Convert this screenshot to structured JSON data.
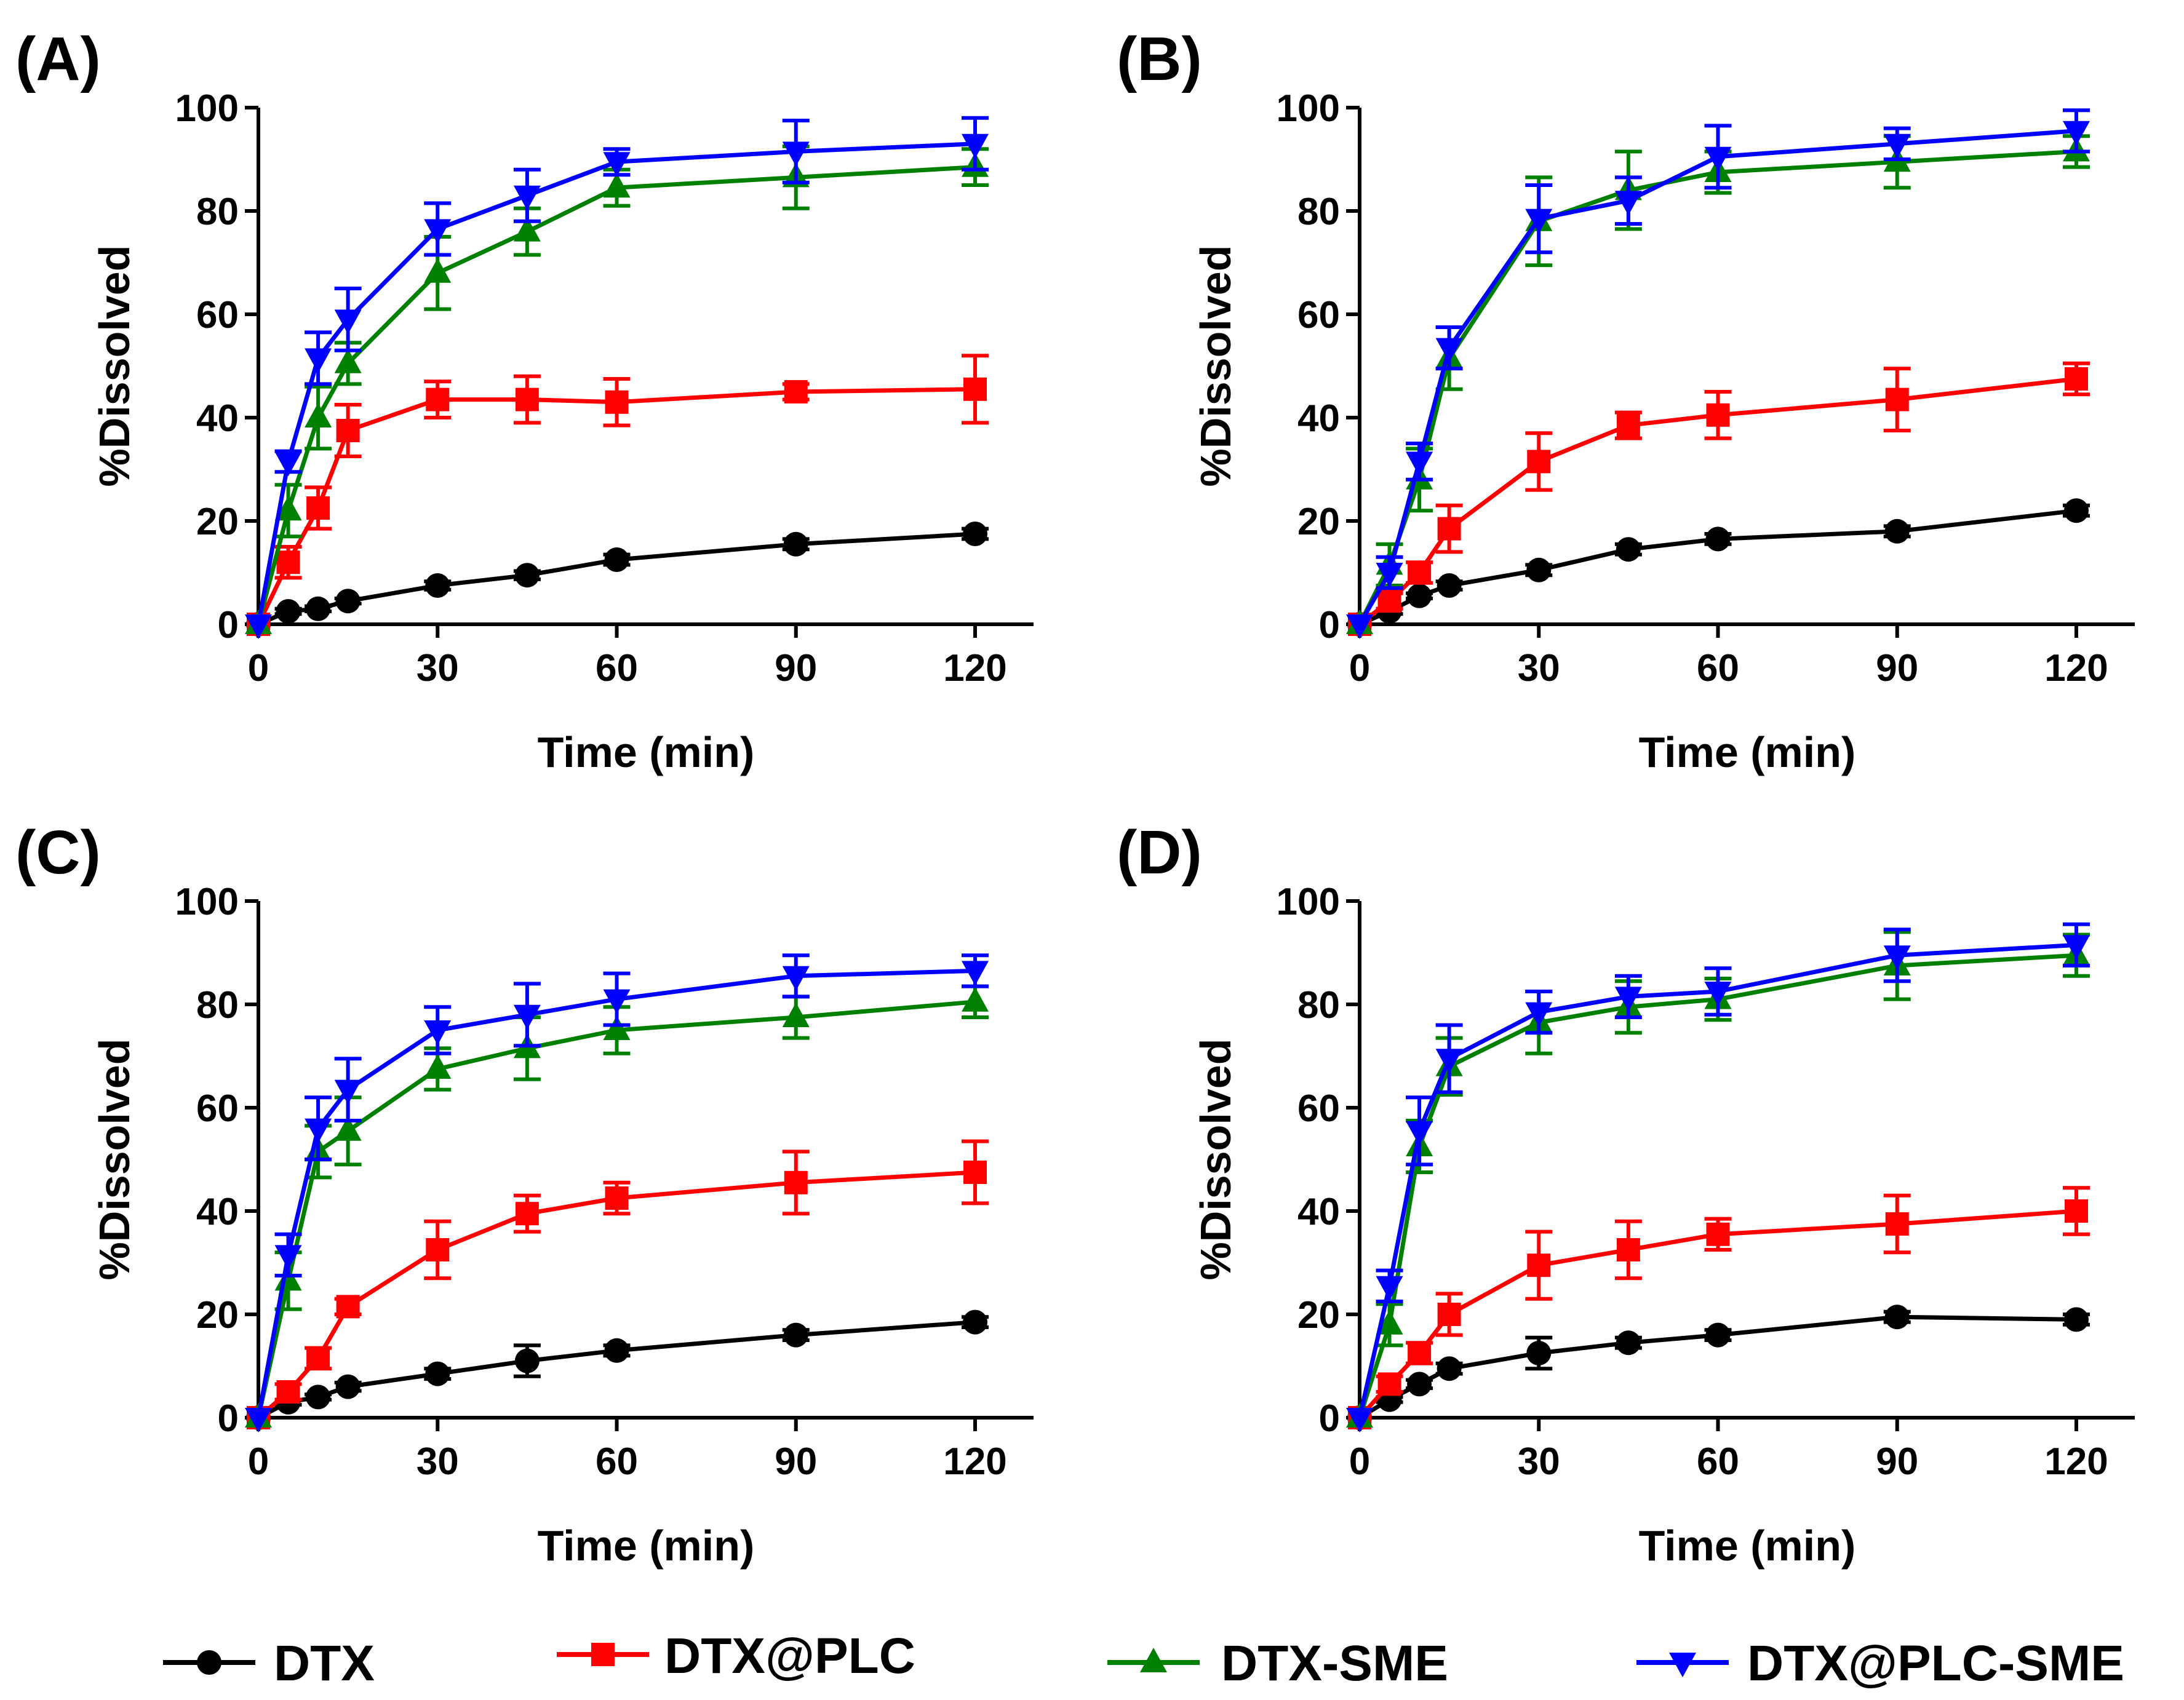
{
  "figure": {
    "x_label": "Time (min)",
    "y_label": "%Dissolved"
  },
  "series_styles": [
    {
      "name": "DTX",
      "color": "#000000",
      "marker": "circle"
    },
    {
      "name": "DTX@PLC",
      "color": "#ff0000",
      "marker": "square"
    },
    {
      "name": "DTX-SME",
      "color": "#008000",
      "marker": "triangle-up"
    },
    {
      "name": "DTX@PLC-SME",
      "color": "#0000ff",
      "marker": "triangle-down"
    }
  ],
  "legend": [
    "DTX",
    "DTX@PLC",
    "DTX-SME",
    "DTX@PLC-SME"
  ],
  "chart_data": [
    {
      "type": "line",
      "panel": "(A)",
      "xlabel": "Time (min)",
      "ylabel": "%Dissolved",
      "xlim": [
        0,
        120
      ],
      "ylim": [
        0,
        100
      ],
      "xticks": [
        0,
        30,
        60,
        90,
        120
      ],
      "yticks": [
        0,
        20,
        40,
        60,
        80,
        100
      ],
      "x": [
        0,
        5,
        10,
        15,
        30,
        45,
        60,
        90,
        120
      ],
      "series": [
        {
          "name": "DTX",
          "values": [
            0,
            2.5,
            3,
            4.5,
            7.5,
            9.5,
            12.5,
            15.5,
            17.5
          ],
          "errors": [
            0,
            0.5,
            0.5,
            0.5,
            0.8,
            0.8,
            1,
            1,
            1
          ]
        },
        {
          "name": "DTX@PLC",
          "values": [
            0,
            12,
            22.5,
            37.5,
            43.5,
            43.5,
            43,
            45,
            45.5
          ],
          "errors": [
            0,
            3,
            4,
            5,
            3.5,
            4.5,
            4.5,
            1.5,
            6.5
          ]
        },
        {
          "name": "DTX-SME",
          "values": [
            0,
            22,
            40,
            50.5,
            68,
            76,
            84.5,
            86.5,
            88.5
          ],
          "errors": [
            0,
            5,
            6,
            4,
            7,
            4.5,
            3.5,
            6,
            3.5
          ]
        },
        {
          "name": "DTX@PLC-SME",
          "values": [
            0,
            31.5,
            51.5,
            59,
            76.5,
            83,
            89.5,
            91.5,
            93
          ],
          "errors": [
            0,
            2,
            5,
            6,
            5,
            5,
            2.5,
            6,
            5
          ]
        }
      ]
    },
    {
      "type": "line",
      "panel": "(B)",
      "xlabel": "Time (min)",
      "ylabel": "%Dissolved",
      "xlim": [
        0,
        120
      ],
      "ylim": [
        0,
        100
      ],
      "xticks": [
        0,
        30,
        60,
        90,
        120
      ],
      "yticks": [
        0,
        20,
        40,
        60,
        80,
        100
      ],
      "x": [
        0,
        5,
        10,
        15,
        30,
        45,
        60,
        90,
        120
      ],
      "series": [
        {
          "name": "DTX",
          "values": [
            0,
            2.5,
            5.5,
            7.5,
            10.5,
            14.5,
            16.5,
            18,
            22
          ],
          "errors": [
            0,
            0.5,
            0.5,
            0.8,
            1,
            1,
            1,
            1,
            1
          ]
        },
        {
          "name": "DTX@PLC",
          "values": [
            0,
            4.5,
            10,
            18.5,
            31.5,
            38.5,
            40.5,
            43.5,
            47.5
          ],
          "errors": [
            0,
            1.5,
            2,
            4.5,
            5.5,
            2.5,
            4.5,
            6,
            3
          ]
        },
        {
          "name": "DTX-SME",
          "values": [
            0,
            11.5,
            28,
            51.5,
            78,
            84,
            87.5,
            89.5,
            91.5
          ],
          "errors": [
            0,
            4,
            6,
            6,
            8.5,
            7.5,
            4,
            5,
            3
          ]
        },
        {
          "name": "DTX@PLC-SME",
          "values": [
            0,
            10,
            31.5,
            53.5,
            78.5,
            82,
            90.5,
            93,
            95.5
          ],
          "errors": [
            0,
            3,
            3.5,
            4,
            6.5,
            4.5,
            6,
            3,
            4
          ]
        }
      ]
    },
    {
      "type": "line",
      "panel": "(C)",
      "xlabel": "Time (min)",
      "ylabel": "%Dissolved",
      "xlim": [
        0,
        120
      ],
      "ylim": [
        0,
        100
      ],
      "xticks": [
        0,
        30,
        60,
        90,
        120
      ],
      "yticks": [
        0,
        20,
        40,
        60,
        80,
        100
      ],
      "x": [
        0,
        5,
        10,
        15,
        30,
        45,
        60,
        90,
        120
      ],
      "series": [
        {
          "name": "DTX",
          "values": [
            0,
            3,
            4,
            6,
            8.5,
            11,
            13,
            16,
            18.5
          ],
          "errors": [
            0,
            0.5,
            0.5,
            0.8,
            1,
            3,
            1,
            1,
            1
          ]
        },
        {
          "name": "DTX@PLC",
          "values": [
            0,
            5,
            11.5,
            21.5,
            32.5,
            39.5,
            42.5,
            45.5,
            47.5
          ],
          "errors": [
            0,
            1.5,
            2,
            1.5,
            5.5,
            3.5,
            3,
            6,
            6
          ]
        },
        {
          "name": "DTX-SME",
          "values": [
            0,
            26.5,
            51.5,
            55.5,
            67.5,
            71.5,
            75,
            77.5,
            80.5
          ],
          "errors": [
            0,
            5.5,
            5,
            6.5,
            4,
            6,
            4.5,
            4,
            3
          ]
        },
        {
          "name": "DTX@PLC-SME",
          "values": [
            0,
            31.5,
            56,
            63.5,
            75,
            78,
            81,
            85.5,
            86.5
          ],
          "errors": [
            0,
            4,
            6,
            6,
            4.5,
            6,
            5,
            4,
            3
          ]
        }
      ]
    },
    {
      "type": "line",
      "panel": "(D)",
      "xlabel": "Time (min)",
      "ylabel": "%Dissolved",
      "xlim": [
        0,
        120
      ],
      "ylim": [
        0,
        100
      ],
      "xticks": [
        0,
        30,
        60,
        90,
        120
      ],
      "yticks": [
        0,
        20,
        40,
        60,
        80,
        100
      ],
      "x": [
        0,
        5,
        10,
        15,
        30,
        45,
        60,
        90,
        120
      ],
      "series": [
        {
          "name": "DTX",
          "values": [
            0,
            3.5,
            6.5,
            9.5,
            12.5,
            14.5,
            16,
            19.5,
            19
          ],
          "errors": [
            0,
            0.5,
            0.8,
            1,
            3,
            1,
            1,
            1,
            1
          ]
        },
        {
          "name": "DTX@PLC",
          "values": [
            0,
            6.5,
            12.5,
            20,
            29.5,
            32.5,
            35.5,
            37.5,
            40
          ],
          "errors": [
            0,
            1.5,
            2,
            4,
            6.5,
            5.5,
            3,
            5.5,
            4.5
          ]
        },
        {
          "name": "DTX-SME",
          "values": [
            0,
            18,
            52.5,
            68,
            76.5,
            79.5,
            81,
            87.5,
            89.5
          ],
          "errors": [
            0,
            4,
            5,
            5.5,
            6,
            5,
            4,
            6.5,
            4
          ]
        },
        {
          "name": "DTX@PLC-SME",
          "values": [
            0,
            25.5,
            55.5,
            69.5,
            78.5,
            81.5,
            82.5,
            89.5,
            91.5
          ],
          "errors": [
            0,
            3,
            6.5,
            6.5,
            4,
            4,
            4.5,
            5,
            4
          ]
        }
      ]
    }
  ]
}
